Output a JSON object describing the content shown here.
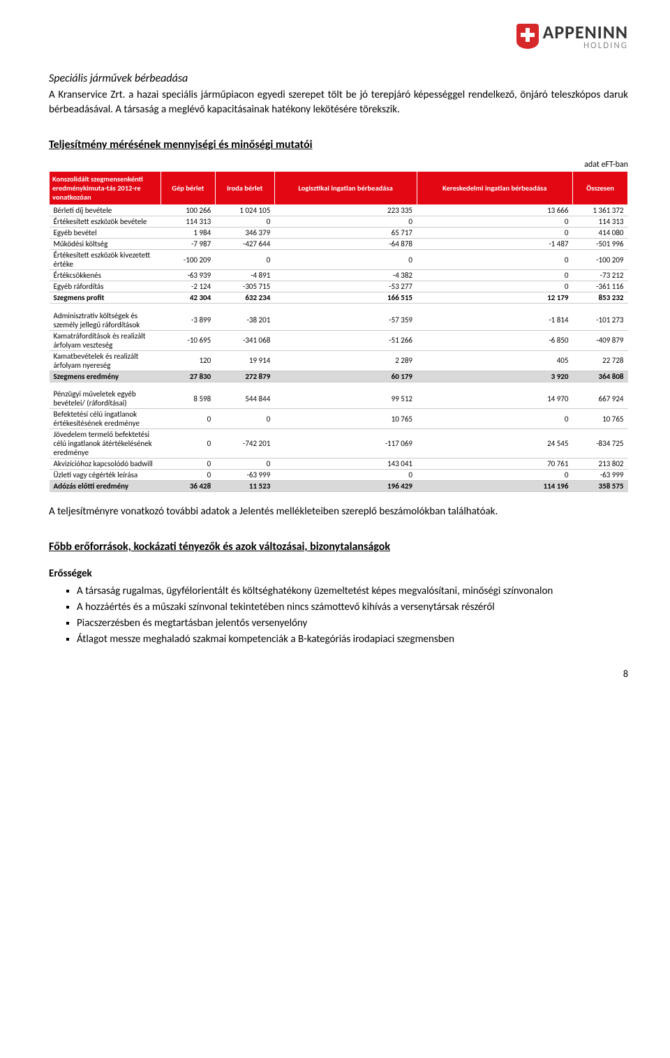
{
  "logo": {
    "brand": "APPENINN",
    "sub": "HOLDING"
  },
  "intro": {
    "title": "Speciális járművek bérbeadása",
    "p1": "A Kranservice Zrt. a hazai speciális járműpiacon egyedi szerepet tölt be jó terepjáró képességgel rendelkező, önjáró teleszkópos daruk bérbeadásával. A társaság a meglévő kapacitásainak hatékony lekötésére törekszik."
  },
  "table_section": {
    "heading": "Teljesítmény mérésének mennyiségi és minőségi mutatói",
    "unit": "adat eFT-ban",
    "columns": {
      "rowhead": "Konszolidált szegmensenkénti eredménykimuta-tás 2012-re vonatkozóan",
      "c1": "Gép bérlet",
      "c2": "Iroda bérlet",
      "c3": "Logisztikai ingatlan bérbeadása",
      "c4": "Kereskedelmi ingatlan bérbeadása",
      "c5": "Összesen"
    },
    "rows": [
      {
        "label": "Bérleti díj bevétele",
        "v": [
          "100 266",
          "1 024 105",
          "223 335",
          "13 666",
          "1 361 372"
        ]
      },
      {
        "label": "Értékesített eszközök bevétele",
        "v": [
          "114 313",
          "0",
          "0",
          "0",
          "114 313"
        ]
      },
      {
        "label": "Egyéb bevétel",
        "v": [
          "1 984",
          "346 379",
          "65 717",
          "0",
          "414 080"
        ]
      },
      {
        "label": "Működési költség",
        "v": [
          "-7 987",
          "-427 644",
          "-64 878",
          "-1 487",
          "-501 996"
        ]
      },
      {
        "label": "Értékesített eszközök kivezetett értéke",
        "v": [
          "-100 209",
          "0",
          "0",
          "0",
          "-100 209"
        ]
      },
      {
        "label": "Értékcsökkenés",
        "v": [
          "-63 939",
          "-4 891",
          "-4 382",
          "0",
          "-73 212"
        ]
      },
      {
        "label": "Egyéb ráfordítás",
        "v": [
          "-2 124",
          "-305 715",
          "-53 277",
          "0",
          "-361 116"
        ]
      },
      {
        "label": "Szegmens profit",
        "v": [
          "42 304",
          "632 234",
          "166 515",
          "12 179",
          "853 232"
        ],
        "bold": true
      }
    ],
    "rows2": [
      {
        "label": "Adminisztratív költségek és személy jellegű ráfordítások",
        "v": [
          "-3 899",
          "-38 201",
          "-57 359",
          "-1 814",
          "-101 273"
        ]
      },
      {
        "label": "Kamatráfordítások és realizált árfolyam veszteség",
        "v": [
          "-10 695",
          "-341 068",
          "-51 266",
          "-6 850",
          "-409 879"
        ]
      },
      {
        "label": "Kamatbevételek és realizált árfolyam nyereség",
        "v": [
          "120",
          "19 914",
          "2 289",
          "405",
          "22 728"
        ]
      },
      {
        "label": "Szegmens eredmény",
        "v": [
          "27 830",
          "272 879",
          "60 179",
          "3 920",
          "364 808"
        ],
        "band": true
      }
    ],
    "rows3": [
      {
        "label": "Pénzügyi műveletek egyéb bevételei/ (ráfordításai)",
        "v": [
          "8 598",
          "544 844",
          "99 512",
          "14 970",
          "667 924"
        ]
      },
      {
        "label": "Befektetési célú ingatlanok értékesítésének eredménye",
        "v": [
          "0",
          "0",
          "10 765",
          "0",
          "10 765"
        ]
      },
      {
        "label": "Jövedelem termelő befektetési célú ingatlanok átértékelésének eredménye",
        "v": [
          "0",
          "-742 201",
          "-117 069",
          "24 545",
          "-834 725"
        ]
      },
      {
        "label": "Akvizícióhoz kapcsolódó badwill",
        "v": [
          "0",
          "0",
          "143 041",
          "70 761",
          "213 802"
        ]
      },
      {
        "label": "Üzleti vagy cégérték leírása",
        "v": [
          "0",
          "-63 999",
          "0",
          "0",
          "-63 999"
        ]
      },
      {
        "label": "Adózás előtti eredmény",
        "v": [
          "36 428",
          "11 523",
          "196 429",
          "114 196",
          "358 575"
        ],
        "band": true
      }
    ]
  },
  "post_table": "A teljesítményre vonatkozó további adatok a Jelentés mellékleteiben szereplő beszámolókban találhatóak.",
  "risks": {
    "heading": "Főbb erőforrások, kockázati tényezők és azok változásai, bizonytalanságok",
    "sub": "Erősségek",
    "items": [
      "A társaság rugalmas, ügyfélorientált és költséghatékony üzemeltetést képes megvalósítani, minőségi színvonalon",
      "A hozzáértés és a műszaki színvonal tekintetében nincs számottevő kihívás a versenytársak részéről",
      "Piacszerzésben és megtartásban jelentős versenyelőny",
      "Átlagot messze meghaladó szakmai kompetenciák a B-kategóriás irodapiaci szegmensben"
    ]
  },
  "page": "8"
}
